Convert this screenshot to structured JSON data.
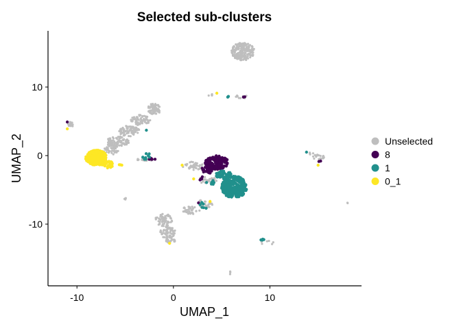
{
  "chart_data": {
    "type": "scatter",
    "title": "Selected sub-clusters",
    "xlabel": "UMAP_1",
    "ylabel": "UMAP_2",
    "xlim": [
      -13,
      19.5
    ],
    "ylim": [
      -19,
      18.2
    ],
    "xticks": [
      -10,
      0,
      10
    ],
    "yticks": [
      -10,
      0,
      10
    ],
    "xtick_labels": [
      "-10",
      "0",
      "10"
    ],
    "ytick_labels": [
      "-10",
      "0",
      "10"
    ],
    "grid": false,
    "legend_position": "right",
    "series": [
      {
        "name": "Unselected",
        "color": "#BEBEBE",
        "clusters": [
          {
            "cx": 7.2,
            "cy": 15.2,
            "rx": 1.2,
            "ry": 1.3,
            "n": 220
          },
          {
            "cx": -2,
            "cy": 6.8,
            "rx": 0.7,
            "ry": 0.8,
            "n": 70
          },
          {
            "cx": -3.4,
            "cy": 5.2,
            "rx": 1.0,
            "ry": 0.8,
            "n": 70
          },
          {
            "cx": -4.6,
            "cy": 3.6,
            "rx": 1.1,
            "ry": 0.8,
            "n": 80
          },
          {
            "cx": -5.8,
            "cy": 2.0,
            "rx": 1.2,
            "ry": 0.8,
            "n": 90
          },
          {
            "cx": -6.5,
            "cy": 0.8,
            "rx": 0.8,
            "ry": 0.7,
            "n": 40
          },
          {
            "cx": -3.0,
            "cy": -0.6,
            "rx": 0.9,
            "ry": 0.25,
            "n": 25
          },
          {
            "cx": -10.6,
            "cy": 4.6,
            "rx": 0.35,
            "ry": 0.35,
            "n": 14
          },
          {
            "cx": 2.0,
            "cy": -1.5,
            "rx": 1.1,
            "ry": 0.6,
            "n": 45
          },
          {
            "cx": 3.6,
            "cy": -3.6,
            "rx": 1.0,
            "ry": 0.5,
            "n": 35
          },
          {
            "cx": 3.3,
            "cy": -7.0,
            "rx": 0.9,
            "ry": 0.6,
            "n": 35
          },
          {
            "cx": 1.8,
            "cy": -8.0,
            "rx": 1.0,
            "ry": 0.6,
            "n": 35
          },
          {
            "cx": -1.0,
            "cy": -9.4,
            "rx": 0.9,
            "ry": 0.9,
            "n": 70
          },
          {
            "cx": -0.6,
            "cy": -11.2,
            "rx": 0.8,
            "ry": 0.9,
            "n": 60
          },
          {
            "cx": -0.3,
            "cy": -12.3,
            "rx": 0.5,
            "ry": 0.5,
            "n": 25
          },
          {
            "cx": -5.0,
            "cy": -6.3,
            "rx": 0.1,
            "ry": 0.15,
            "n": 4
          },
          {
            "cx": 15.0,
            "cy": -0.2,
            "rx": 0.7,
            "ry": 0.35,
            "n": 18
          },
          {
            "cx": 14.2,
            "cy": 0.3,
            "rx": 0.3,
            "ry": 0.2,
            "n": 5
          },
          {
            "cx": 7.0,
            "cy": 8.6,
            "rx": 0.8,
            "ry": 0.3,
            "n": 10
          },
          {
            "cx": 3.8,
            "cy": 8.8,
            "rx": 0.4,
            "ry": 0.2,
            "n": 5
          },
          {
            "cx": 9.8,
            "cy": -12.7,
            "rx": 0.7,
            "ry": 0.4,
            "n": 6
          },
          {
            "cx": 18.0,
            "cy": -6.9,
            "rx": 0.1,
            "ry": 0.1,
            "n": 2
          },
          {
            "cx": 5.8,
            "cy": -17.1,
            "rx": 0.15,
            "ry": 0.3,
            "n": 3
          }
        ]
      },
      {
        "name": "8",
        "color": "#440154",
        "clusters": [
          {
            "cx": 4.5,
            "cy": -1.0,
            "rx": 1.2,
            "ry": 1.0,
            "n": 130
          },
          {
            "cx": 3.6,
            "cy": -2.0,
            "rx": 0.7,
            "ry": 0.6,
            "n": 30
          },
          {
            "cx": 2.8,
            "cy": -3.4,
            "rx": 0.4,
            "ry": 0.4,
            "n": 5
          },
          {
            "cx": -2.3,
            "cy": -0.5,
            "rx": 0.6,
            "ry": 0.2,
            "n": 6
          },
          {
            "cx": -11.0,
            "cy": 4.9,
            "rx": 0.1,
            "ry": 0.1,
            "n": 1
          },
          {
            "cx": 7.3,
            "cy": 8.6,
            "rx": 0.1,
            "ry": 0.1,
            "n": 2
          },
          {
            "cx": 15.2,
            "cy": -0.9,
            "rx": 0.2,
            "ry": 0.2,
            "n": 2
          },
          {
            "cx": 2.6,
            "cy": -6.9,
            "rx": 0.1,
            "ry": 0.1,
            "n": 1
          }
        ]
      },
      {
        "name": "1",
        "color": "#21908C",
        "clusters": [
          {
            "cx": 6.3,
            "cy": -4.6,
            "rx": 1.3,
            "ry": 1.6,
            "n": 340
          },
          {
            "cx": 5.2,
            "cy": -2.8,
            "rx": 0.8,
            "ry": 0.6,
            "n": 45
          },
          {
            "cx": 3.9,
            "cy": -4.0,
            "rx": 0.6,
            "ry": 0.4,
            "n": 10
          },
          {
            "cx": 3.0,
            "cy": -7.3,
            "rx": 0.6,
            "ry": 0.5,
            "n": 6
          },
          {
            "cx": -2.7,
            "cy": -0.2,
            "rx": 0.5,
            "ry": 0.5,
            "n": 8
          },
          {
            "cx": -2.8,
            "cy": 3.7,
            "rx": 0.1,
            "ry": 0.1,
            "n": 1
          },
          {
            "cx": 5.6,
            "cy": 8.6,
            "rx": 0.2,
            "ry": 0.1,
            "n": 2
          },
          {
            "cx": 9.3,
            "cy": -12.3,
            "rx": 0.25,
            "ry": 0.2,
            "n": 4
          },
          {
            "cx": 13.8,
            "cy": 0.5,
            "rx": 0.1,
            "ry": 0.1,
            "n": 1
          }
        ]
      },
      {
        "name": "0_1",
        "color": "#FDE725",
        "clusters": [
          {
            "cx": -8.0,
            "cy": -0.3,
            "rx": 1.1,
            "ry": 1.1,
            "n": 260
          },
          {
            "cx": -6.8,
            "cy": -1.3,
            "rx": 0.6,
            "ry": 0.5,
            "n": 30
          },
          {
            "cx": -5.5,
            "cy": -1.4,
            "rx": 0.2,
            "ry": 0.2,
            "n": 3
          },
          {
            "cx": -11.0,
            "cy": 3.9,
            "rx": 0.1,
            "ry": 0.1,
            "n": 1
          },
          {
            "cx": 0.9,
            "cy": -1.4,
            "rx": 0.1,
            "ry": 0.1,
            "n": 1
          },
          {
            "cx": 3.8,
            "cy": -6.7,
            "rx": 0.1,
            "ry": 0.1,
            "n": 1
          },
          {
            "cx": -0.4,
            "cy": -12.8,
            "rx": 0.1,
            "ry": 0.1,
            "n": 1
          },
          {
            "cx": 4.5,
            "cy": 9.1,
            "rx": 0.1,
            "ry": 0.1,
            "n": 1
          },
          {
            "cx": 15.0,
            "cy": -1.4,
            "rx": 0.1,
            "ry": 0.1,
            "n": 1
          },
          {
            "cx": 2.1,
            "cy": -3.4,
            "rx": 0.1,
            "ry": 0.1,
            "n": 1
          }
        ]
      }
    ]
  }
}
